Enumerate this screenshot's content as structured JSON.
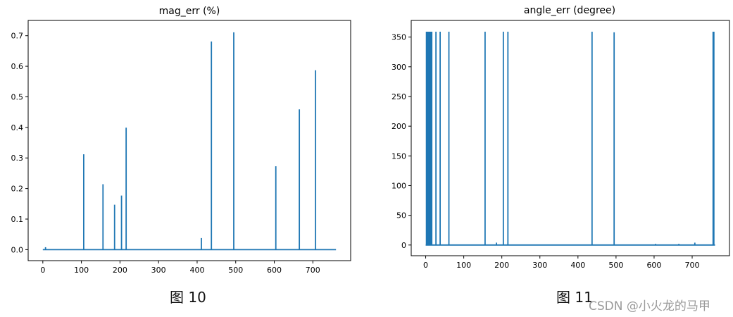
{
  "chart_data": [
    {
      "type": "line",
      "title": "mag_err (%)",
      "xlabel": "",
      "ylabel": "",
      "xlim": [
        -38,
        798
      ],
      "ylim": [
        -0.036,
        0.75
      ],
      "xticks": [
        0,
        100,
        200,
        300,
        400,
        500,
        600,
        700
      ],
      "yticks": [
        0.0,
        0.1,
        0.2,
        0.3,
        0.4,
        0.5,
        0.6,
        0.7
      ],
      "ytick_labels": [
        "0.0",
        "0.1",
        "0.2",
        "0.3",
        "0.4",
        "0.5",
        "0.6",
        "0.7"
      ],
      "grid": false,
      "color": "#1f77b4",
      "x_end": 760,
      "baseline": 0.0,
      "spikes": [
        {
          "x": 7,
          "y": 0.008
        },
        {
          "x": 106,
          "y": 0.312
        },
        {
          "x": 156,
          "y": 0.214
        },
        {
          "x": 186,
          "y": 0.147
        },
        {
          "x": 204,
          "y": 0.177
        },
        {
          "x": 216,
          "y": 0.399
        },
        {
          "x": 411,
          "y": 0.038
        },
        {
          "x": 437,
          "y": 0.681
        },
        {
          "x": 495,
          "y": 0.711
        },
        {
          "x": 604,
          "y": 0.273
        },
        {
          "x": 665,
          "y": 0.459
        },
        {
          "x": 707,
          "y": 0.587
        }
      ]
    },
    {
      "type": "line",
      "title": "angle_err (degree)",
      "xlabel": "",
      "ylabel": "",
      "xlim": [
        -38,
        798
      ],
      "ylim": [
        -18,
        378
      ],
      "xticks": [
        0,
        100,
        200,
        300,
        400,
        500,
        600,
        700
      ],
      "yticks": [
        0,
        50,
        100,
        150,
        200,
        250,
        300,
        350
      ],
      "ytick_labels": [
        "0",
        "50",
        "100",
        "150",
        "200",
        "250",
        "300",
        "350"
      ],
      "grid": false,
      "color": "#1f77b4",
      "x_end": 760,
      "baseline": 0,
      "spikes": [
        {
          "x": 2,
          "y": 359
        },
        {
          "x": 4,
          "y": 359
        },
        {
          "x": 6,
          "y": 359
        },
        {
          "x": 8,
          "y": 359
        },
        {
          "x": 10,
          "y": 359
        },
        {
          "x": 12,
          "y": 359
        },
        {
          "x": 14,
          "y": 359
        },
        {
          "x": 16,
          "y": 359
        },
        {
          "x": 27,
          "y": 359
        },
        {
          "x": 38,
          "y": 359
        },
        {
          "x": 61,
          "y": 359
        },
        {
          "x": 156,
          "y": 359
        },
        {
          "x": 186,
          "y": 4
        },
        {
          "x": 204,
          "y": 359
        },
        {
          "x": 216,
          "y": 359
        },
        {
          "x": 437,
          "y": 359
        },
        {
          "x": 495,
          "y": 358
        },
        {
          "x": 604,
          "y": 2
        },
        {
          "x": 665,
          "y": 2
        },
        {
          "x": 707,
          "y": 4
        },
        {
          "x": 755,
          "y": 359
        },
        {
          "x": 757,
          "y": 359
        }
      ]
    }
  ],
  "captions": {
    "left": "图 10",
    "right": "图 11"
  },
  "watermark": "CSDN @小火龙的马甲"
}
